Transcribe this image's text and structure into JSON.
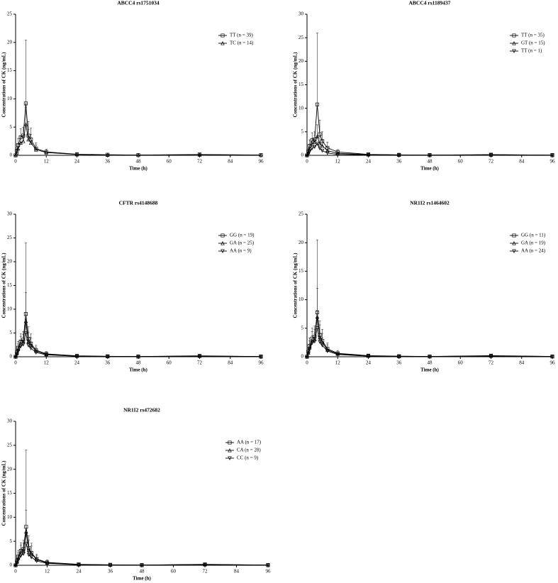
{
  "chart_data": [
    {
      "type": "line",
      "title": "ABCC4 rs1751034",
      "xlabel": "Time (h)",
      "ylabel": "Concentrations of CK (ng/mL)",
      "x": [
        0,
        0.5,
        1,
        2,
        3,
        4,
        5,
        6,
        8,
        12,
        24,
        36,
        48,
        72,
        96
      ],
      "xlim": [
        0,
        96
      ],
      "xticks": [
        0,
        12,
        24,
        36,
        48,
        60,
        72,
        84,
        96
      ],
      "ylim": [
        0,
        25
      ],
      "yticks": [
        0,
        5,
        10,
        15,
        20,
        25
      ],
      "series": [
        {
          "name": "TT (n = 39)",
          "color": "#000000",
          "marker": "square",
          "values": [
            0,
            0.8,
            1.8,
            3.2,
            3.5,
            9.2,
            3.5,
            2.8,
            1.2,
            0.6,
            0.2,
            0.1,
            0.05,
            0.15,
            0.05
          ],
          "errors": [
            0,
            0.5,
            1.2,
            1.5,
            1.5,
            11.2,
            2.5,
            2,
            1,
            0.5,
            0.2,
            0.1,
            0.05,
            0.2,
            0.05
          ]
        },
        {
          "name": "TC (n = 14)",
          "color": "#000000",
          "marker": "triangle",
          "values": [
            0,
            0.5,
            1.2,
            2.2,
            2.5,
            5.5,
            2.8,
            2.2,
            1,
            0.5,
            0.15,
            0.08,
            0.05,
            0.1,
            0.05
          ],
          "errors": [
            0,
            0.4,
            0.8,
            1.2,
            1.3,
            3,
            1.8,
            1.5,
            0.8,
            0.4,
            0.1,
            0.05,
            0.05,
            0.1,
            0.05
          ]
        }
      ]
    },
    {
      "type": "line",
      "title": "ABCC4 rs1189437",
      "xlabel": "Time (h)",
      "ylabel": "Concentrations of CK (ng/mL)",
      "x": [
        0,
        0.5,
        1,
        2,
        3,
        4,
        5,
        6,
        8,
        12,
        24,
        36,
        48,
        72,
        96
      ],
      "xlim": [
        0,
        96
      ],
      "xticks": [
        0,
        12,
        24,
        36,
        48,
        60,
        72,
        84,
        96
      ],
      "ylim": [
        0,
        30
      ],
      "yticks": [
        0,
        5,
        10,
        15,
        20,
        25,
        30
      ],
      "series": [
        {
          "name": "TT (n = 35)",
          "color": "#000000",
          "marker": "square",
          "values": [
            0,
            0.9,
            2,
            3.2,
            3.4,
            10.8,
            4.5,
            3,
            1.6,
            0.7,
            0.2,
            0.1,
            0.05,
            0.15,
            0.05
          ],
          "errors": [
            0,
            0.6,
            1.3,
            1.6,
            1.6,
            15.2,
            3,
            2,
            1.2,
            0.5,
            0.2,
            0.1,
            0.05,
            0.2,
            0.05
          ]
        },
        {
          "name": "GT (n = 15)",
          "color": "#000000",
          "marker": "triangle",
          "values": [
            0,
            0.6,
            1.4,
            2.4,
            2.8,
            4,
            2.5,
            2,
            1,
            0.4,
            0.15,
            0.08,
            0.05,
            0.1,
            0.05
          ],
          "errors": [
            0,
            0.4,
            0.9,
            1.2,
            1.4,
            2.5,
            1.5,
            1.2,
            0.7,
            0.3,
            0.1,
            0.05,
            0.05,
            0.1,
            0.05
          ]
        },
        {
          "name": "TT (n = 1)",
          "color": "#000000",
          "marker": "triangle-down",
          "values": [
            0,
            0.3,
            0.8,
            1.5,
            1.8,
            2.5,
            1.5,
            1,
            0.5,
            0.2,
            0.1,
            0.05,
            0.05,
            0.05,
            0.05
          ],
          "errors": [
            0,
            0,
            0,
            0,
            0,
            0,
            0,
            0,
            0,
            0,
            0,
            0,
            0,
            0,
            0
          ]
        }
      ]
    },
    {
      "type": "line",
      "title": "CFTR rs4148688",
      "xlabel": "Time (h)",
      "ylabel": "Concentrations of CK (ng/mL)",
      "x": [
        0,
        0.5,
        1,
        2,
        3,
        4,
        5,
        6,
        8,
        12,
        24,
        36,
        48,
        72,
        96
      ],
      "xlim": [
        0,
        96
      ],
      "xticks": [
        0,
        12,
        24,
        36,
        48,
        60,
        72,
        84,
        96
      ],
      "ylim": [
        0,
        30
      ],
      "yticks": [
        0,
        5,
        10,
        15,
        20,
        25,
        30
      ],
      "series": [
        {
          "name": "GG (n = 19)",
          "color": "#000000",
          "marker": "square",
          "values": [
            0,
            0.9,
            1.9,
            3.2,
            3.6,
            9,
            3.8,
            2.8,
            1.4,
            0.6,
            0.2,
            0.1,
            0.05,
            0.2,
            0.05
          ],
          "errors": [
            0,
            0.6,
            1.3,
            1.6,
            1.7,
            15,
            2.5,
            2,
            1,
            0.5,
            0.2,
            0.1,
            0.05,
            0.2,
            0.05
          ]
        },
        {
          "name": "GA (n = 25)",
          "color": "#000000",
          "marker": "triangle",
          "values": [
            0,
            0.7,
            1.6,
            2.8,
            3.2,
            7.5,
            3.2,
            2.4,
            1.2,
            0.5,
            0.15,
            0.08,
            0.05,
            0.15,
            0.05
          ],
          "errors": [
            0,
            0.5,
            1.1,
            1.5,
            1.5,
            6,
            2,
            1.6,
            0.8,
            0.4,
            0.1,
            0.05,
            0.05,
            0.1,
            0.05
          ]
        },
        {
          "name": "AA (n = 9)",
          "color": "#000000",
          "marker": "triangle-down",
          "values": [
            0,
            0.5,
            1.2,
            2.2,
            2.6,
            5,
            2.4,
            1.8,
            0.9,
            0.4,
            0.1,
            0.05,
            0.05,
            0.1,
            0.05
          ],
          "errors": [
            0,
            0.4,
            0.8,
            1.2,
            1.3,
            3,
            1.5,
            1.2,
            0.6,
            0.3,
            0.1,
            0.05,
            0.05,
            0.1,
            0.05
          ]
        }
      ]
    },
    {
      "type": "line",
      "title": "NR1I2 rs1464602",
      "xlabel": "Time (h)",
      "ylabel": "Concentrations of CK (ng/mL)",
      "x": [
        0,
        0.5,
        1,
        2,
        3,
        4,
        5,
        6,
        8,
        12,
        24,
        36,
        48,
        72,
        96
      ],
      "xlim": [
        0,
        96
      ],
      "xticks": [
        0,
        12,
        24,
        36,
        48,
        60,
        72,
        84,
        96
      ],
      "ylim": [
        0,
        25
      ],
      "yticks": [
        0,
        5,
        10,
        15,
        20,
        25
      ],
      "series": [
        {
          "name": "GG (n = 11)",
          "color": "#000000",
          "marker": "square",
          "values": [
            0,
            0.9,
            1.9,
            3.2,
            3.5,
            7.8,
            3.8,
            2.8,
            1.4,
            0.6,
            0.2,
            0.1,
            0.05,
            0.2,
            0.05
          ],
          "errors": [
            0,
            0.6,
            1.4,
            1.8,
            1.9,
            12.7,
            2.5,
            2,
            1,
            0.5,
            0.2,
            0.1,
            0.05,
            0.2,
            0.05
          ]
        },
        {
          "name": "GA (n = 19)",
          "color": "#000000",
          "marker": "triangle",
          "values": [
            0,
            0.7,
            1.6,
            2.8,
            3.1,
            7,
            3.4,
            2.5,
            1.2,
            0.5,
            0.15,
            0.08,
            0.05,
            0.15,
            0.05
          ],
          "errors": [
            0,
            0.5,
            1.2,
            1.6,
            1.7,
            5,
            2.2,
            1.6,
            0.9,
            0.4,
            0.1,
            0.05,
            0.05,
            0.1,
            0.05
          ]
        },
        {
          "name": "AA (n = 24)",
          "color": "#000000",
          "marker": "triangle-down",
          "values": [
            0,
            0.6,
            1.3,
            2.4,
            2.7,
            5,
            2.6,
            2,
            1,
            0.4,
            0.1,
            0.05,
            0.05,
            0.1,
            0.05
          ],
          "errors": [
            0,
            0.4,
            0.9,
            1.3,
            1.4,
            3,
            1.6,
            1.3,
            0.7,
            0.3,
            0.1,
            0.05,
            0.05,
            0.1,
            0.05
          ]
        }
      ]
    },
    {
      "type": "line",
      "title": "NR1I2 rs472682",
      "xlabel": "Time (h)",
      "ylabel": "Concentrations of CK (ng/mL)",
      "x": [
        0,
        0.5,
        1,
        2,
        3,
        4,
        5,
        6,
        8,
        12,
        24,
        36,
        48,
        72,
        96
      ],
      "xlim": [
        0,
        96
      ],
      "xticks": [
        0,
        12,
        24,
        36,
        48,
        60,
        72,
        84,
        96
      ],
      "ylim": [
        0,
        30
      ],
      "yticks": [
        0,
        5,
        10,
        15,
        20,
        25,
        30
      ],
      "series": [
        {
          "name": "AA (n = 17)",
          "color": "#000000",
          "marker": "square",
          "values": [
            0,
            0.8,
            1.8,
            3,
            3.4,
            8,
            3.6,
            2.6,
            1.3,
            0.6,
            0.2,
            0.1,
            0.05,
            0.2,
            0.05
          ],
          "errors": [
            0,
            0.6,
            1.3,
            1.7,
            1.8,
            16,
            2.5,
            2,
            1,
            0.5,
            0.2,
            0.1,
            0.05,
            0.2,
            0.05
          ]
        },
        {
          "name": "CA (n = 28)",
          "color": "#000000",
          "marker": "triangle",
          "values": [
            0,
            0.7,
            1.5,
            2.7,
            3,
            7,
            3.2,
            2.4,
            1.2,
            0.5,
            0.15,
            0.08,
            0.05,
            0.15,
            0.05
          ],
          "errors": [
            0,
            0.5,
            1.1,
            1.5,
            1.6,
            4.5,
            2,
            1.6,
            0.8,
            0.4,
            0.1,
            0.05,
            0.05,
            0.1,
            0.05
          ]
        },
        {
          "name": "CC (n = 9)",
          "color": "#000000",
          "marker": "triangle-down",
          "values": [
            0,
            0.5,
            1.1,
            2,
            2.4,
            4.5,
            2.2,
            1.7,
            0.9,
            0.4,
            0.1,
            0.05,
            0.05,
            0.1,
            0.05
          ],
          "errors": [
            0,
            0.4,
            0.8,
            1.1,
            1.2,
            2.5,
            1.4,
            1.1,
            0.6,
            0.3,
            0.1,
            0.05,
            0.05,
            0.1,
            0.05
          ]
        }
      ]
    }
  ]
}
